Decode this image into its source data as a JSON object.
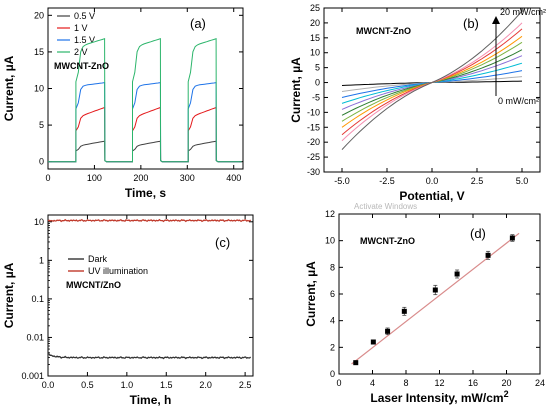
{
  "chart_data": [
    {
      "panel": "(a)",
      "type": "line",
      "xlabel": "Time, s",
      "ylabel": "Current, µA",
      "xlim": [
        0,
        420
      ],
      "ylim": [
        -1,
        21
      ],
      "xticks": [
        0,
        100,
        200,
        300,
        400
      ],
      "yticks": [
        0,
        5,
        10,
        15,
        20
      ],
      "grid": false,
      "legend_position": "top-left",
      "annotation": "MWCNT-ZnO",
      "pulses": [
        [
          60,
          122
        ],
        [
          182,
          242
        ],
        [
          302,
          362
        ]
      ],
      "series": [
        {
          "name": "0.5 V",
          "color": "#404040",
          "on_start": 2.1,
          "on_end": 2.8
        },
        {
          "name": "1 V",
          "color": "#e41a1c",
          "on_start": 6.0,
          "on_end": 7.4
        },
        {
          "name": "1.5 V",
          "color": "#1e73e8",
          "on_start": 10.3,
          "on_end": 10.8
        },
        {
          "name": "2 V",
          "color": "#2cb56b",
          "on_start": 15.6,
          "on_end": 16.8
        }
      ]
    },
    {
      "panel": "(b)",
      "type": "line",
      "xlabel": "Potential, V",
      "ylabel": "Current, µA",
      "xlim": [
        -6,
        6
      ],
      "ylim": [
        -30,
        25
      ],
      "xticks": [
        -5.0,
        -2.5,
        0.0,
        2.5,
        5.0
      ],
      "xtick_labels": [
        "-5.0",
        "-2.5",
        "0.0",
        "2.5",
        "5.0"
      ],
      "yticks": [
        -30,
        -25,
        -20,
        -15,
        -10,
        -5,
        0,
        5,
        10,
        15,
        20,
        25
      ],
      "grid": false,
      "annotation": "MWCNT-ZnO",
      "top_label": "20 mW/cm²",
      "bottom_label": "0 mW/cm²",
      "series": [
        {
          "color": "#000000",
          "i_pos": 0.5,
          "i_neg": -1.0
        },
        {
          "color": "#b0b0b0",
          "i_pos": 2.0,
          "i_neg": -3.0
        },
        {
          "color": "#1e73e8",
          "i_pos": 4.0,
          "i_neg": -5.0
        },
        {
          "color": "#00bcd4",
          "i_pos": 6.5,
          "i_neg": -7.0
        },
        {
          "color": "#8b6fd6",
          "i_pos": 9.0,
          "i_neg": -9.0
        },
        {
          "color": "#2e7d32",
          "i_pos": 11.0,
          "i_neg": -11.0
        },
        {
          "color": "#7cb342",
          "i_pos": 13.5,
          "i_neg": -13.0
        },
        {
          "color": "#ff9800",
          "i_pos": 15.5,
          "i_neg": -15.0
        },
        {
          "color": "#e53935",
          "i_pos": 18.0,
          "i_neg": -17.5
        },
        {
          "color": "#f48fb1",
          "i_pos": 20.0,
          "i_neg": -19.5
        },
        {
          "color": "#616161",
          "i_pos": 24.0,
          "i_neg": -22.5
        }
      ]
    },
    {
      "panel": "(c)",
      "type": "line",
      "xlabel": "Time, h",
      "ylabel": "Current, µA",
      "xlim": [
        0,
        2.6
      ],
      "ylim": [
        0.001,
        15
      ],
      "yscale": "log",
      "xticks": [
        0.0,
        0.5,
        1.0,
        1.5,
        2.0,
        2.5
      ],
      "xtick_labels": [
        "0.0",
        "0.5",
        "1.0",
        "1.5",
        "2.0",
        "2.5"
      ],
      "yticks": [
        0.001,
        0.01,
        0.1,
        1,
        10
      ],
      "ytick_labels": [
        "0.001",
        "0.01",
        "0.1",
        "1",
        "10"
      ],
      "grid": false,
      "legend_position": "middle-left",
      "annotation": "MWCNT/ZnO",
      "series": [
        {
          "name": "Dark",
          "color": "#333333",
          "level": 0.003,
          "start": 0.0037
        },
        {
          "name": "UV illumination",
          "color": "#c0392b",
          "level": 10.8,
          "start": 10.5
        }
      ]
    },
    {
      "panel": "(d)",
      "type": "scatter",
      "xlabel": "Laser Intensity, mW/cm",
      "xlabel_sup": "2",
      "ylabel": "Current, µA",
      "xlim": [
        0,
        24
      ],
      "ylim": [
        0,
        12
      ],
      "xticks": [
        0,
        4,
        8,
        12,
        16,
        20,
        24
      ],
      "yticks": [
        0,
        2,
        4,
        6,
        8,
        10,
        12
      ],
      "grid": false,
      "annotation": "MWCNT-ZnO",
      "x": [
        2.0,
        4.1,
        5.8,
        7.8,
        11.5,
        14.1,
        17.8,
        20.7
      ],
      "y": [
        0.85,
        2.4,
        3.2,
        4.7,
        6.3,
        7.5,
        8.9,
        10.2
      ],
      "yerr": [
        0.1,
        0.15,
        0.25,
        0.3,
        0.35,
        0.3,
        0.3,
        0.25
      ],
      "fit": {
        "x": [
          1.5,
          21.5
        ],
        "y": [
          0.75,
          10.55
        ],
        "color": "#d98c8c"
      },
      "marker_color": "#000000"
    }
  ],
  "watermark": "Activate Windows"
}
